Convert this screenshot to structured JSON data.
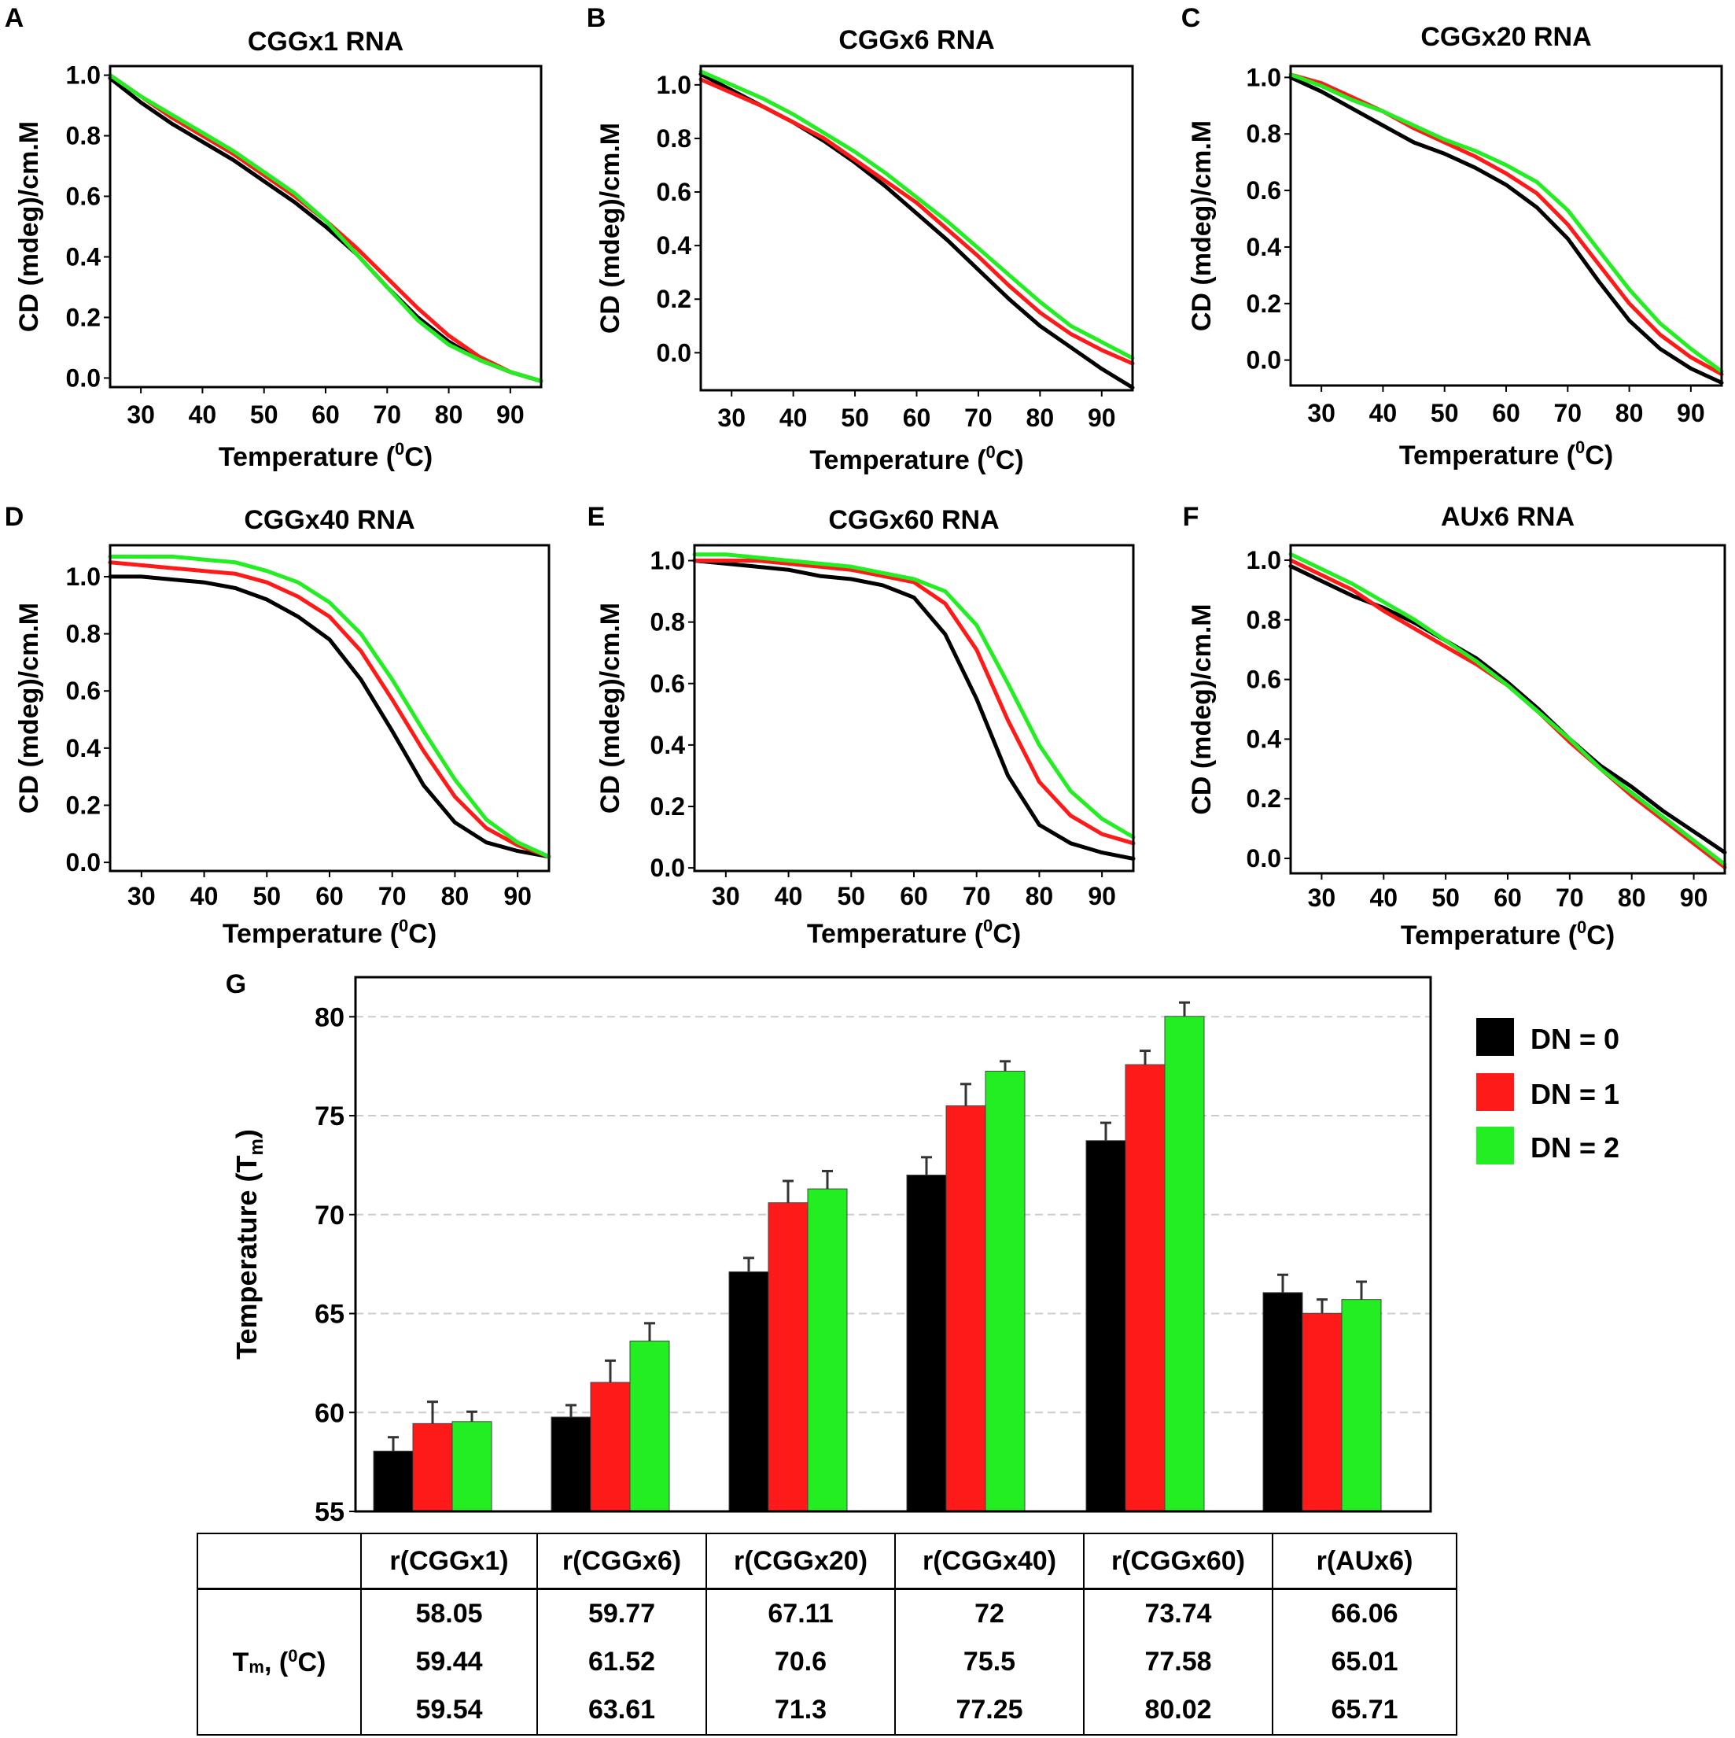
{
  "colors": {
    "dn0": "#000000",
    "dn1": "#ff1a1a",
    "dn2": "#22ee22"
  },
  "chart_data": [
    {
      "panel_label": "A",
      "type": "line",
      "title": "CGGx1 RNA",
      "xlabel": "Temperature (",
      "xlabel_sup": "0",
      "xlabel_end": "C)",
      "ylabel": "CD (mdeg)/cm.M",
      "xlim": [
        25,
        95
      ],
      "ylim": [
        -0.03,
        1.03
      ],
      "xticks": [
        30,
        40,
        50,
        60,
        70,
        80,
        90
      ],
      "yticks": [
        0.0,
        0.2,
        0.4,
        0.6,
        0.8,
        1.0
      ],
      "ytick_labels": [
        "0.0",
        "0.2",
        "0.4",
        "0.6",
        "0.8",
        "1.0"
      ],
      "x": [
        25,
        30,
        35,
        40,
        45,
        50,
        55,
        60,
        65,
        70,
        75,
        80,
        85,
        90,
        95
      ],
      "series": [
        {
          "name": "DN = 0",
          "color_key": "dn0",
          "values": [
            0.99,
            0.91,
            0.84,
            0.78,
            0.72,
            0.65,
            0.58,
            0.5,
            0.41,
            0.3,
            0.2,
            0.12,
            0.06,
            0.02,
            -0.01
          ]
        },
        {
          "name": "DN = 1",
          "color_key": "dn1",
          "values": [
            1.0,
            0.93,
            0.86,
            0.8,
            0.74,
            0.67,
            0.6,
            0.52,
            0.43,
            0.33,
            0.23,
            0.14,
            0.07,
            0.02,
            -0.01
          ]
        },
        {
          "name": "DN = 2",
          "color_key": "dn2",
          "values": [
            1.0,
            0.93,
            0.87,
            0.81,
            0.75,
            0.68,
            0.61,
            0.52,
            0.41,
            0.3,
            0.19,
            0.11,
            0.06,
            0.02,
            -0.01
          ]
        }
      ]
    },
    {
      "panel_label": "B",
      "type": "line",
      "title": "CGGx6 RNA",
      "xlabel": "Temperature (",
      "xlabel_sup": "0",
      "xlabel_end": "C)",
      "ylabel": "CD (mdeg)/cm.M",
      "xlim": [
        25,
        95
      ],
      "ylim": [
        -0.14,
        1.07
      ],
      "xticks": [
        30,
        40,
        50,
        60,
        70,
        80,
        90
      ],
      "yticks": [
        0.0,
        0.2,
        0.4,
        0.6,
        0.8,
        1.0
      ],
      "ytick_labels": [
        "0.0",
        "0.2",
        "0.4",
        "0.6",
        "0.8",
        "1.0"
      ],
      "x": [
        25,
        30,
        35,
        40,
        45,
        50,
        55,
        60,
        65,
        70,
        75,
        80,
        85,
        90,
        95
      ],
      "series": [
        {
          "name": "DN = 0",
          "color_key": "dn0",
          "values": [
            1.04,
            0.98,
            0.92,
            0.86,
            0.79,
            0.71,
            0.62,
            0.52,
            0.42,
            0.31,
            0.2,
            0.1,
            0.02,
            -0.06,
            -0.13
          ]
        },
        {
          "name": "DN = 1",
          "color_key": "dn1",
          "values": [
            1.02,
            0.97,
            0.92,
            0.86,
            0.8,
            0.72,
            0.64,
            0.56,
            0.46,
            0.36,
            0.25,
            0.15,
            0.07,
            0.01,
            -0.04
          ]
        },
        {
          "name": "DN = 2",
          "color_key": "dn2",
          "values": [
            1.05,
            1.0,
            0.95,
            0.89,
            0.82,
            0.75,
            0.67,
            0.58,
            0.49,
            0.39,
            0.29,
            0.19,
            0.1,
            0.04,
            -0.02
          ]
        }
      ]
    },
    {
      "panel_label": "C",
      "type": "line",
      "title": "CGGx20 RNA",
      "xlabel": "Temperature (",
      "xlabel_sup": "0",
      "xlabel_end": "C)",
      "ylabel": "CD (mdeg)/cm.M",
      "xlim": [
        25,
        95
      ],
      "ylim": [
        -0.09,
        1.04
      ],
      "xticks": [
        30,
        40,
        50,
        60,
        70,
        80,
        90
      ],
      "yticks": [
        0.0,
        0.2,
        0.4,
        0.6,
        0.8,
        1.0
      ],
      "ytick_labels": [
        "0.0",
        "0.2",
        "0.4",
        "0.6",
        "0.8",
        "1.0"
      ],
      "x": [
        25,
        30,
        35,
        40,
        45,
        50,
        55,
        60,
        65,
        70,
        75,
        80,
        85,
        90,
        95
      ],
      "series": [
        {
          "name": "DN = 0",
          "color_key": "dn0",
          "values": [
            1.0,
            0.95,
            0.89,
            0.83,
            0.77,
            0.73,
            0.68,
            0.62,
            0.54,
            0.43,
            0.28,
            0.14,
            0.04,
            -0.03,
            -0.08
          ]
        },
        {
          "name": "DN = 1",
          "color_key": "dn1",
          "values": [
            1.01,
            0.98,
            0.93,
            0.88,
            0.82,
            0.77,
            0.72,
            0.66,
            0.59,
            0.48,
            0.34,
            0.2,
            0.09,
            0.01,
            -0.05
          ]
        },
        {
          "name": "DN = 2",
          "color_key": "dn2",
          "values": [
            1.01,
            0.97,
            0.92,
            0.88,
            0.83,
            0.78,
            0.74,
            0.69,
            0.63,
            0.53,
            0.39,
            0.25,
            0.13,
            0.04,
            -0.04
          ]
        }
      ]
    },
    {
      "panel_label": "D",
      "type": "line",
      "title": "CGGx40 RNA",
      "xlabel": "Temperature (",
      "xlabel_sup": "0",
      "xlabel_end": "C)",
      "ylabel": "CD (mdeg)/cm.M",
      "xlim": [
        25,
        95
      ],
      "ylim": [
        -0.03,
        1.11
      ],
      "xticks": [
        30,
        40,
        50,
        60,
        70,
        80,
        90
      ],
      "yticks": [
        0.0,
        0.2,
        0.4,
        0.6,
        0.8,
        1.0
      ],
      "ytick_labels": [
        "0.0",
        "0.2",
        "0.4",
        "0.6",
        "0.8",
        "1.0"
      ],
      "x": [
        25,
        30,
        35,
        40,
        45,
        50,
        55,
        60,
        65,
        70,
        75,
        80,
        85,
        90,
        95
      ],
      "series": [
        {
          "name": "DN = 0",
          "color_key": "dn0",
          "values": [
            1.0,
            1.0,
            0.99,
            0.98,
            0.96,
            0.92,
            0.86,
            0.78,
            0.64,
            0.46,
            0.27,
            0.14,
            0.07,
            0.04,
            0.02
          ]
        },
        {
          "name": "DN = 1",
          "color_key": "dn1",
          "values": [
            1.05,
            1.04,
            1.03,
            1.02,
            1.01,
            0.98,
            0.93,
            0.86,
            0.74,
            0.57,
            0.39,
            0.23,
            0.12,
            0.06,
            0.02
          ]
        },
        {
          "name": "DN = 2",
          "color_key": "dn2",
          "values": [
            1.07,
            1.07,
            1.07,
            1.06,
            1.05,
            1.02,
            0.98,
            0.91,
            0.8,
            0.64,
            0.46,
            0.29,
            0.15,
            0.07,
            0.02
          ]
        }
      ]
    },
    {
      "panel_label": "E",
      "type": "line",
      "title": "CGGx60 RNA",
      "xlabel": "Temperature (",
      "xlabel_sup": "0",
      "xlabel_end": "C)",
      "ylabel": "CD (mdeg)/cm.M",
      "xlim": [
        25,
        95
      ],
      "ylim": [
        -0.01,
        1.05
      ],
      "xticks": [
        30,
        40,
        50,
        60,
        70,
        80,
        90
      ],
      "yticks": [
        0.0,
        0.2,
        0.4,
        0.6,
        0.8,
        1.0
      ],
      "ytick_labels": [
        "0.0",
        "0.2",
        "0.4",
        "0.6",
        "0.8",
        "1.0"
      ],
      "x": [
        25,
        30,
        35,
        40,
        45,
        50,
        55,
        60,
        65,
        70,
        75,
        80,
        85,
        90,
        95
      ],
      "series": [
        {
          "name": "DN = 0",
          "color_key": "dn0",
          "values": [
            1.0,
            0.99,
            0.98,
            0.97,
            0.95,
            0.94,
            0.92,
            0.88,
            0.76,
            0.55,
            0.3,
            0.14,
            0.08,
            0.05,
            0.03
          ]
        },
        {
          "name": "DN = 1",
          "color_key": "dn1",
          "values": [
            1.0,
            1.0,
            1.0,
            0.99,
            0.98,
            0.97,
            0.95,
            0.93,
            0.86,
            0.71,
            0.48,
            0.28,
            0.17,
            0.11,
            0.08
          ]
        },
        {
          "name": "DN = 2",
          "color_key": "dn2",
          "values": [
            1.02,
            1.02,
            1.01,
            1.0,
            0.99,
            0.98,
            0.96,
            0.94,
            0.9,
            0.79,
            0.6,
            0.4,
            0.25,
            0.16,
            0.1
          ]
        }
      ]
    },
    {
      "panel_label": "F",
      "type": "line",
      "title": "AUx6 RNA",
      "xlabel": "Temperature (",
      "xlabel_sup": "0",
      "xlabel_end": "C)",
      "ylabel": "CD (mdeg)/cm.M",
      "xlim": [
        25,
        95
      ],
      "ylim": [
        -0.05,
        1.05
      ],
      "xticks": [
        30,
        40,
        50,
        60,
        70,
        80,
        90
      ],
      "yticks": [
        0.0,
        0.2,
        0.4,
        0.6,
        0.8,
        1.0
      ],
      "ytick_labels": [
        "0.0",
        "0.2",
        "0.4",
        "0.6",
        "0.8",
        "1.0"
      ],
      "x": [
        25,
        30,
        35,
        40,
        45,
        50,
        55,
        60,
        65,
        70,
        75,
        80,
        85,
        90,
        95
      ],
      "series": [
        {
          "name": "DN = 0",
          "color_key": "dn0",
          "values": [
            0.98,
            0.93,
            0.88,
            0.84,
            0.79,
            0.73,
            0.67,
            0.59,
            0.5,
            0.4,
            0.31,
            0.24,
            0.16,
            0.09,
            0.02
          ]
        },
        {
          "name": "DN = 1",
          "color_key": "dn1",
          "values": [
            1.0,
            0.95,
            0.9,
            0.83,
            0.77,
            0.71,
            0.65,
            0.58,
            0.49,
            0.39,
            0.3,
            0.21,
            0.13,
            0.05,
            -0.03
          ]
        },
        {
          "name": "DN = 2",
          "color_key": "dn2",
          "values": [
            1.02,
            0.97,
            0.92,
            0.86,
            0.8,
            0.73,
            0.66,
            0.58,
            0.49,
            0.4,
            0.3,
            0.22,
            0.14,
            0.06,
            -0.02
          ]
        }
      ]
    },
    {
      "panel_label": "G",
      "type": "bar",
      "ylabel": "Temperature (T",
      "ylabel_sub": "m",
      "ylabel_end": ")",
      "ylim": [
        55,
        82
      ],
      "yticks": [
        55,
        60,
        65,
        70,
        75,
        80
      ],
      "grid": "dashed horizontal",
      "legend_position": "right",
      "categories": [
        "r(CGGx1)",
        "r(CGGx6)",
        "r(CGGx20)",
        "r(CGGx40)",
        "r(CGGx60)",
        "r(AUx6)"
      ],
      "series": [
        {
          "name": "DN = 0",
          "color_key": "dn0",
          "values": [
            58.05,
            59.77,
            67.11,
            72,
            73.74,
            66.06
          ],
          "errors": [
            0.7,
            0.6,
            0.7,
            0.9,
            0.9,
            0.9
          ]
        },
        {
          "name": "DN = 1",
          "color_key": "dn1",
          "values": [
            59.44,
            61.52,
            70.6,
            75.5,
            77.58,
            65.01
          ],
          "errors": [
            1.1,
            1.1,
            1.1,
            1.1,
            0.7,
            0.7
          ]
        },
        {
          "name": "DN = 2",
          "color_key": "dn2",
          "values": [
            59.54,
            63.61,
            71.3,
            77.25,
            80.02,
            65.71
          ],
          "errors": [
            0.5,
            0.9,
            0.9,
            0.5,
            0.7,
            0.9
          ]
        }
      ]
    }
  ],
  "table": {
    "headers": [
      "r(CGGx1)",
      "r(CGGx6)",
      "r(CGGx20)",
      "r(CGGx40)",
      "r(CGGx60)",
      "r(AUx6)"
    ],
    "row_label": {
      "base": "T",
      "sub": "m",
      "mid": ", (",
      "sup": "0",
      "end": "C)"
    },
    "rows": [
      [
        "58.05",
        "59.77",
        "67.11",
        "72",
        "73.74",
        "66.06"
      ],
      [
        "59.44",
        "61.52",
        "70.6",
        "75.5",
        "77.58",
        "65.01"
      ],
      [
        "59.54",
        "63.61",
        "71.3",
        "77.25",
        "80.02",
        "65.71"
      ]
    ]
  }
}
